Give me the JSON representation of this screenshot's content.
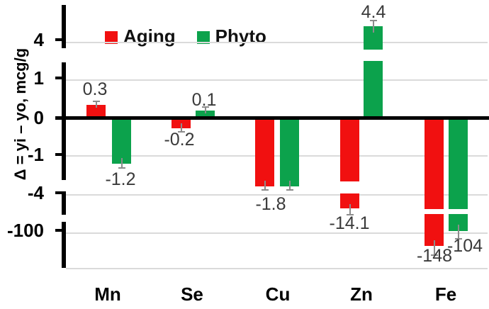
{
  "chart_data": {
    "type": "bar",
    "title": "",
    "ylabel": "Δ = yi – yo, mcg/g",
    "categories": [
      "Mn",
      "Se",
      "Cu",
      "Zn",
      "Fe"
    ],
    "series": [
      {
        "name": "Aging",
        "color": "#f11010",
        "values": [
          0.3,
          -0.2,
          -1.8,
          -14.1,
          -148
        ],
        "value_labels": [
          "0.3",
          "-0.2",
          "-1.8",
          "-14.1",
          "-148"
        ]
      },
      {
        "name": "Phyto",
        "color": "#0ca24c",
        "values": [
          -1.2,
          0.1,
          -1.8,
          4.4,
          -104
        ],
        "value_labels": [
          "-1.2",
          "0.1",
          "",
          "4.4",
          "-104"
        ]
      }
    ],
    "y_tick_labels": [
      "4",
      "1",
      "0",
      "-1",
      "-4",
      "-100"
    ],
    "y_scale": "nonlinear with axis breaks (between 1 and 4, -1 and -4, -4 and -100); bars crossing a break are drawn split with a gap",
    "error_bars": true,
    "grid": true,
    "zero_line": true,
    "legend_position": "top-left inside plot",
    "colors": {
      "grid": "#dadada",
      "error_bar": "#8c8c8c",
      "value_label_text": "#3a3a3a",
      "axis": "#000000"
    }
  }
}
